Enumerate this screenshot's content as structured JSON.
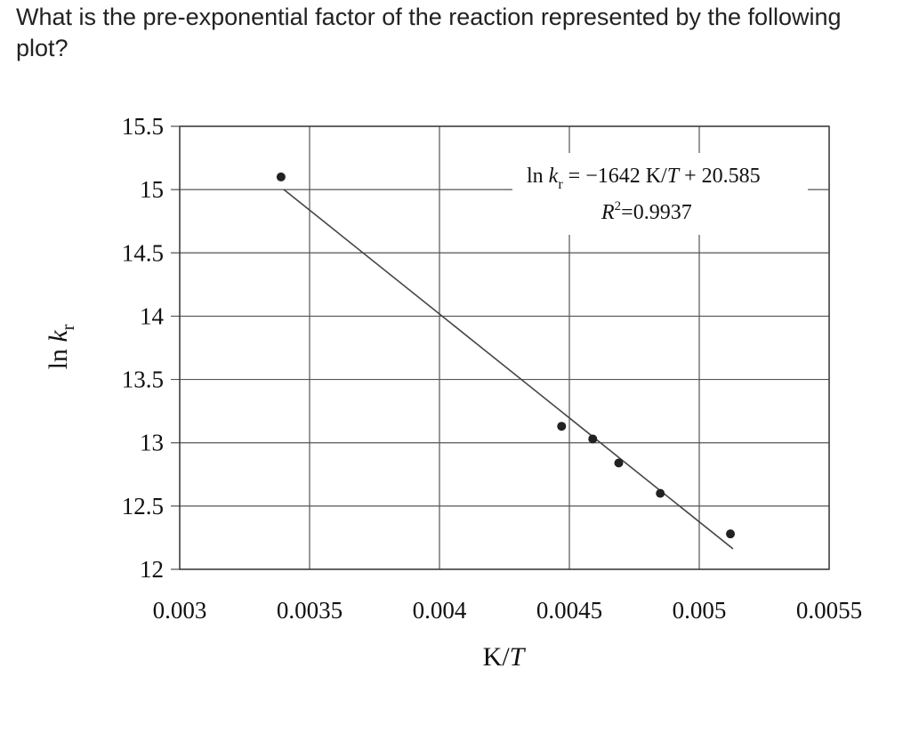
{
  "question": "What is the pre-exponential factor of the reaction represented by the following plot?",
  "chart_data": {
    "type": "scatter",
    "xlabel": "K/T",
    "ylabel": "ln k_r",
    "xlim": [
      0.003,
      0.0055
    ],
    "ylim": [
      12,
      15.5
    ],
    "x_ticks": [
      "0.003",
      "0.0035",
      "0.004",
      "0.0045",
      "0.005",
      "0.0055"
    ],
    "y_ticks": [
      "12",
      "12.5",
      "13",
      "13.5",
      "14",
      "14.5",
      "15",
      "15.5"
    ],
    "grid": true,
    "points": [
      {
        "x": 0.00339,
        "y": 15.1
      },
      {
        "x": 0.00447,
        "y": 13.13
      },
      {
        "x": 0.00459,
        "y": 13.03
      },
      {
        "x": 0.00469,
        "y": 12.84
      },
      {
        "x": 0.00485,
        "y": 12.6
      },
      {
        "x": 0.00512,
        "y": 12.28
      }
    ],
    "trendline": {
      "slope": -1642,
      "intercept": 20.585,
      "x_start": 0.0034,
      "x_end": 0.00513
    },
    "annotation": {
      "equation": "ln k_r = −1642 K/T + 20.585",
      "r_squared": "R²=0.9937"
    }
  }
}
